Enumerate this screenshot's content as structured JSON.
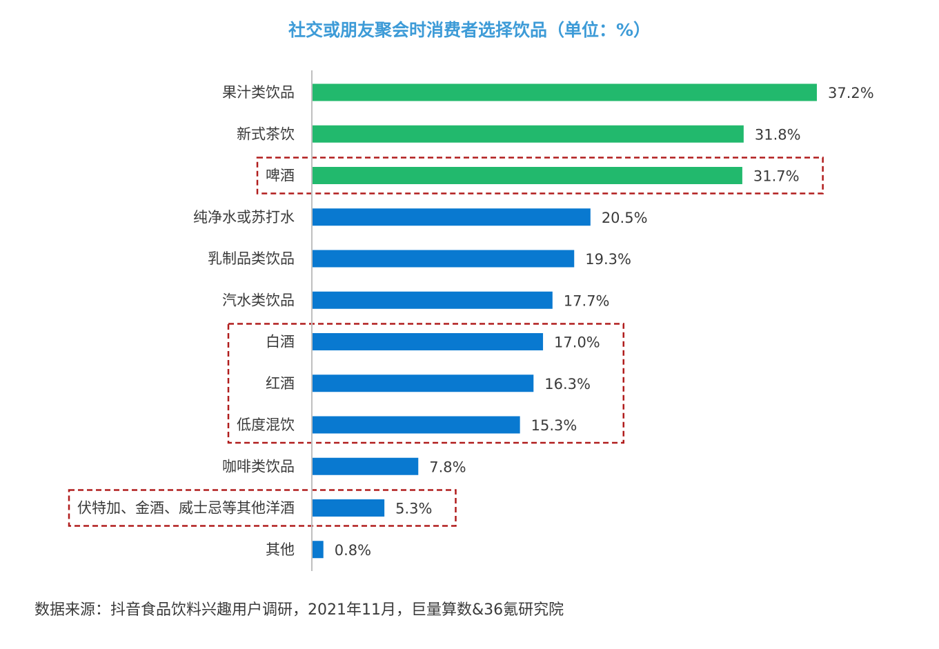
{
  "chart_data": {
    "type": "bar",
    "orientation": "horizontal",
    "title": "社交或朋友聚会时消费者选择饮品（单位：%）",
    "categories": [
      "果汁类饮品",
      "新式茶饮",
      "啤酒",
      "纯净水或苏打水",
      "乳制品类饮品",
      "汽水类饮品",
      "白酒",
      "红酒",
      "低度混饮",
      "咖啡类饮品",
      "伏特加、金酒、威士忌等其他洋酒",
      "其他"
    ],
    "values": [
      37.2,
      31.8,
      31.7,
      20.5,
      19.3,
      17.7,
      17.0,
      16.3,
      15.3,
      7.8,
      5.3,
      0.8
    ],
    "value_labels": [
      "37.2%",
      "31.8%",
      "31.7%",
      "20.5%",
      "19.3%",
      "17.7%",
      "17.0%",
      "16.3%",
      "15.3%",
      "7.8%",
      "5.3%",
      "0.8%"
    ],
    "bar_colors": [
      "#22b96d",
      "#22b96d",
      "#22b96d",
      "#0979d0",
      "#0979d0",
      "#0979d0",
      "#0979d0",
      "#0979d0",
      "#0979d0",
      "#0979d0",
      "#0979d0",
      "#0979d0"
    ],
    "highlight_groups": [
      [
        "啤酒"
      ],
      [
        "白酒",
        "红酒",
        "低度混饮"
      ],
      [
        "伏特加、金酒、威士忌等其他洋酒"
      ]
    ],
    "highlight_color": "#b01c1c",
    "axis_color": "#bfbfbf",
    "grid": false,
    "legend": "none"
  },
  "source": "数据来源：抖音食品饮料兴趣用户调研，2021年11月，巨量算数&36氪研究院"
}
